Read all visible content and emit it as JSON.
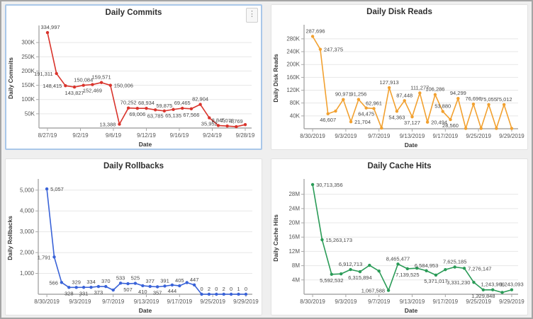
{
  "icons": {
    "more_options": "⋮"
  },
  "theme": {
    "background": "#efefef",
    "card_background": "#ffffff",
    "card_border": "#e2e2e2",
    "selected_card_border": "#a9c7e9",
    "grid_line": "#e7e7e7",
    "axis_line": "#a8a8a8",
    "title_color": "#2e2e2e",
    "tick_color": "#565656",
    "data_label_color": "#474747"
  },
  "chart_data": [
    {
      "id": "daily-commits",
      "type": "line",
      "title": "Daily Commits",
      "xlabel": "Date",
      "ylabel": "Daily Commits",
      "color": "#d9342c",
      "selected": true,
      "legend": "none",
      "grid": "horizontal",
      "ylim": [
        0,
        350000
      ],
      "y_ticks": [
        {
          "v": 50000,
          "label": "50K"
        },
        {
          "v": 100000,
          "label": "100K"
        },
        {
          "v": 150000,
          "label": "150K"
        },
        {
          "v": 200000,
          "label": "200K"
        },
        {
          "v": 250000,
          "label": "250K"
        },
        {
          "v": 300000,
          "label": "300K"
        }
      ],
      "x_ticks": [
        "8/27/19",
        "9/2/19",
        "9/6/19",
        "9/12/19",
        "9/16/19",
        "9/24/19",
        "9/28/19"
      ],
      "points": [
        {
          "v": 334997,
          "label": "334,997",
          "pos": "a"
        },
        {
          "v": 191311,
          "label": "191,311",
          "pos": "l"
        },
        {
          "v": 148415,
          "label": "148,415",
          "pos": "l"
        },
        {
          "v": 143827,
          "label": "143,827",
          "pos": "b"
        },
        {
          "v": 150084,
          "label": "150,084",
          "pos": "a"
        },
        {
          "v": 152469,
          "label": "152,469",
          "pos": "b"
        },
        {
          "v": 159571,
          "label": "159,571",
          "pos": "a"
        },
        {
          "v": 150006,
          "label": "150,006",
          "pos": "r"
        },
        {
          "v": 13388,
          "label": "13,388",
          "pos": "l"
        },
        {
          "v": 70252,
          "label": "70,252",
          "pos": "a"
        },
        {
          "v": 69006,
          "label": "69,006",
          "pos": "b"
        },
        {
          "v": 68934,
          "label": "68,934",
          "pos": "a"
        },
        {
          "v": 63785,
          "label": "63,785",
          "pos": "b"
        },
        {
          "v": 59875,
          "label": "59,875",
          "pos": "a"
        },
        {
          "v": 65135,
          "label": "65,135",
          "pos": "b"
        },
        {
          "v": 69465,
          "label": "69,465",
          "pos": "a"
        },
        {
          "v": 67566,
          "label": "67,566",
          "pos": "b"
        },
        {
          "v": 82904,
          "label": "82,904",
          "pos": "a"
        },
        {
          "v": 35952,
          "label": "35,952",
          "pos": "b"
        },
        {
          "v": 8845,
          "label": "8,845",
          "pos": "a"
        },
        {
          "v": 7073,
          "label": "7,073",
          "pos": "a"
        },
        {
          "v": 4769,
          "label": "4,769",
          "pos": "a"
        },
        {
          "v": 12000,
          "label": "",
          "pos": ""
        }
      ]
    },
    {
      "id": "daily-disk-reads",
      "type": "line",
      "title": "Daily Disk Reads",
      "xlabel": "Date",
      "ylabel": "Daily Disk Reads",
      "color": "#f2a130",
      "selected": false,
      "legend": "none",
      "grid": "horizontal",
      "ylim": [
        0,
        315000
      ],
      "y_ticks": [
        {
          "v": 40000,
          "label": "40K"
        },
        {
          "v": 80000,
          "label": "80K"
        },
        {
          "v": 120000,
          "label": "120K"
        },
        {
          "v": 160000,
          "label": "160K"
        },
        {
          "v": 200000,
          "label": "200K"
        },
        {
          "v": 240000,
          "label": "240K"
        },
        {
          "v": 280000,
          "label": "280K"
        }
      ],
      "x_ticks": [
        "8/30/2019",
        "9/3/2019",
        "9/7/2019",
        "9/13/2019",
        "9/17/2019",
        "9/25/2019",
        "9/29/2019"
      ],
      "points": [
        {
          "v": 287696,
          "label": "287,696",
          "pos": "a"
        },
        {
          "v": 247375,
          "label": "247,375",
          "pos": "r"
        },
        {
          "v": 46607,
          "label": "46,607",
          "pos": "b"
        },
        {
          "v": 55000,
          "label": "",
          "pos": ""
        },
        {
          "v": 90971,
          "label": "90,971",
          "pos": "a"
        },
        {
          "v": 21704,
          "label": "21,704",
          "pos": "r"
        },
        {
          "v": 91256,
          "label": "91,256",
          "pos": "a"
        },
        {
          "v": 64475,
          "label": "64,475",
          "pos": "b"
        },
        {
          "v": 62961,
          "label": "62,961",
          "pos": "a"
        },
        {
          "v": 2000,
          "label": "",
          "pos": ""
        },
        {
          "v": 127913,
          "label": "127,913",
          "pos": "a"
        },
        {
          "v": 54363,
          "label": "54,363",
          "pos": "b"
        },
        {
          "v": 87448,
          "label": "87,448",
          "pos": "a"
        },
        {
          "v": 37127,
          "label": "37,127",
          "pos": "b"
        },
        {
          "v": 111277,
          "label": "111,277",
          "pos": "a"
        },
        {
          "v": 20494,
          "label": "20,494",
          "pos": "r"
        },
        {
          "v": 106286,
          "label": "106,286",
          "pos": "a"
        },
        {
          "v": 53880,
          "label": "53,880",
          "pos": "a"
        },
        {
          "v": 28560,
          "label": "28,560",
          "pos": "b"
        },
        {
          "v": 94299,
          "label": "94,299",
          "pos": "a"
        },
        {
          "v": 1000,
          "label": "",
          "pos": ""
        },
        {
          "v": 76696,
          "label": "76,696",
          "pos": "a"
        },
        {
          "v": 1000,
          "label": "",
          "pos": ""
        },
        {
          "v": 75055,
          "label": "75,055",
          "pos": "a"
        },
        {
          "v": 1000,
          "label": "",
          "pos": ""
        },
        {
          "v": 75012,
          "label": "75,012",
          "pos": "a"
        },
        {
          "v": 1000,
          "label": "",
          "pos": ""
        }
      ]
    },
    {
      "id": "daily-rollbacks",
      "type": "line",
      "title": "Daily Rollbacks",
      "xlabel": "Date",
      "ylabel": "Daily Rollbacks",
      "color": "#3a63d8",
      "selected": false,
      "legend": "none",
      "grid": "horizontal",
      "ylim": [
        0,
        5400
      ],
      "y_ticks": [
        {
          "v": 1000,
          "label": "1,000"
        },
        {
          "v": 2000,
          "label": "2,000"
        },
        {
          "v": 3000,
          "label": "3,000"
        },
        {
          "v": 4000,
          "label": "4,000"
        },
        {
          "v": 5000,
          "label": "5,000"
        }
      ],
      "x_ticks": [
        "8/30/2019",
        "9/3/2019",
        "9/7/2019",
        "9/13/2019",
        "9/17/2019",
        "9/25/2019",
        "9/29/2019"
      ],
      "points": [
        {
          "v": 5057,
          "label": "5,057",
          "pos": "r"
        },
        {
          "v": 1791,
          "label": "1,791",
          "pos": "l"
        },
        {
          "v": 566,
          "label": "566",
          "pos": "l"
        },
        {
          "v": 328,
          "label": "328",
          "pos": "b"
        },
        {
          "v": 329,
          "label": "329",
          "pos": "a"
        },
        {
          "v": 331,
          "label": "331",
          "pos": "b"
        },
        {
          "v": 334,
          "label": "334",
          "pos": "a"
        },
        {
          "v": 373,
          "label": "373",
          "pos": "b"
        },
        {
          "v": 370,
          "label": "370",
          "pos": "a"
        },
        {
          "v": 200,
          "label": "",
          "pos": ""
        },
        {
          "v": 533,
          "label": "533",
          "pos": "a"
        },
        {
          "v": 507,
          "label": "507",
          "pos": "b"
        },
        {
          "v": 525,
          "label": "525",
          "pos": "a"
        },
        {
          "v": 410,
          "label": "410",
          "pos": "b"
        },
        {
          "v": 377,
          "label": "377",
          "pos": "a"
        },
        {
          "v": 357,
          "label": "357",
          "pos": "b"
        },
        {
          "v": 391,
          "label": "391",
          "pos": "a"
        },
        {
          "v": 444,
          "label": "444",
          "pos": "b"
        },
        {
          "v": 405,
          "label": "405",
          "pos": "a"
        },
        {
          "v": 560,
          "label": "",
          "pos": ""
        },
        {
          "v": 447,
          "label": "447",
          "pos": "a"
        },
        {
          "v": 0,
          "label": "0",
          "pos": "a"
        },
        {
          "v": 2,
          "label": "2",
          "pos": "a"
        },
        {
          "v": 0,
          "label": "0",
          "pos": "a"
        },
        {
          "v": 2,
          "label": "2",
          "pos": "a"
        },
        {
          "v": 0,
          "label": "0",
          "pos": "a"
        },
        {
          "v": 1,
          "label": "1",
          "pos": "a"
        },
        {
          "v": 0,
          "label": "0",
          "pos": "a"
        }
      ]
    },
    {
      "id": "daily-cache-hits",
      "type": "line",
      "title": "Daily Cache Hits",
      "xlabel": "Date",
      "ylabel": "Daily Cache Hits",
      "color": "#2a9b57",
      "selected": false,
      "legend": "none",
      "grid": "horizontal",
      "ylim": [
        0,
        31500000
      ],
      "y_ticks": [
        {
          "v": 4000000,
          "label": "4M"
        },
        {
          "v": 8000000,
          "label": "8M"
        },
        {
          "v": 12000000,
          "label": "12M"
        },
        {
          "v": 16000000,
          "label": "16M"
        },
        {
          "v": 20000000,
          "label": "20M"
        },
        {
          "v": 24000000,
          "label": "24M"
        },
        {
          "v": 28000000,
          "label": "28M"
        }
      ],
      "x_ticks": [
        "8/30/2019",
        "9/3/2019",
        "9/7/2019",
        "9/13/2019",
        "9/17/2019",
        "9/25/2019",
        "9/29/2019"
      ],
      "points": [
        {
          "v": 30713356,
          "label": "30,713,356",
          "pos": "r"
        },
        {
          "v": 15263173,
          "label": "15,263,173",
          "pos": "r"
        },
        {
          "v": 5592532,
          "label": "5,592,532",
          "pos": "b"
        },
        {
          "v": 5700000,
          "label": "",
          "pos": ""
        },
        {
          "v": 6912713,
          "label": "6,912,713",
          "pos": "a"
        },
        {
          "v": 6315894,
          "label": "6,315,894",
          "pos": "b"
        },
        {
          "v": 8100000,
          "label": "",
          "pos": ""
        },
        {
          "v": 6500000,
          "label": "",
          "pos": ""
        },
        {
          "v": 1067588,
          "label": "1,067,588",
          "pos": "l"
        },
        {
          "v": 8465477,
          "label": "8,465,477",
          "pos": "a"
        },
        {
          "v": 7139525,
          "label": "7,139,525",
          "pos": "b"
        },
        {
          "v": 7300000,
          "label": "",
          "pos": ""
        },
        {
          "v": 6584953,
          "label": "6,584,953",
          "pos": "a"
        },
        {
          "v": 5371017,
          "label": "5,371,017",
          "pos": "b"
        },
        {
          "v": 6900000,
          "label": "",
          "pos": ""
        },
        {
          "v": 7625185,
          "label": "7,625,185",
          "pos": "a"
        },
        {
          "v": 7276147,
          "label": "7,276,147",
          "pos": "r"
        },
        {
          "v": 3331230,
          "label": "3,331,230",
          "pos": "l"
        },
        {
          "v": 1229848,
          "label": "1,229,848",
          "pos": "b"
        },
        {
          "v": 1243966,
          "label": "1,243,966",
          "pos": "a"
        },
        {
          "v": 500000,
          "label": "",
          "pos": ""
        },
        {
          "v": 1243093,
          "label": "1,243,093",
          "pos": "a"
        }
      ]
    }
  ]
}
